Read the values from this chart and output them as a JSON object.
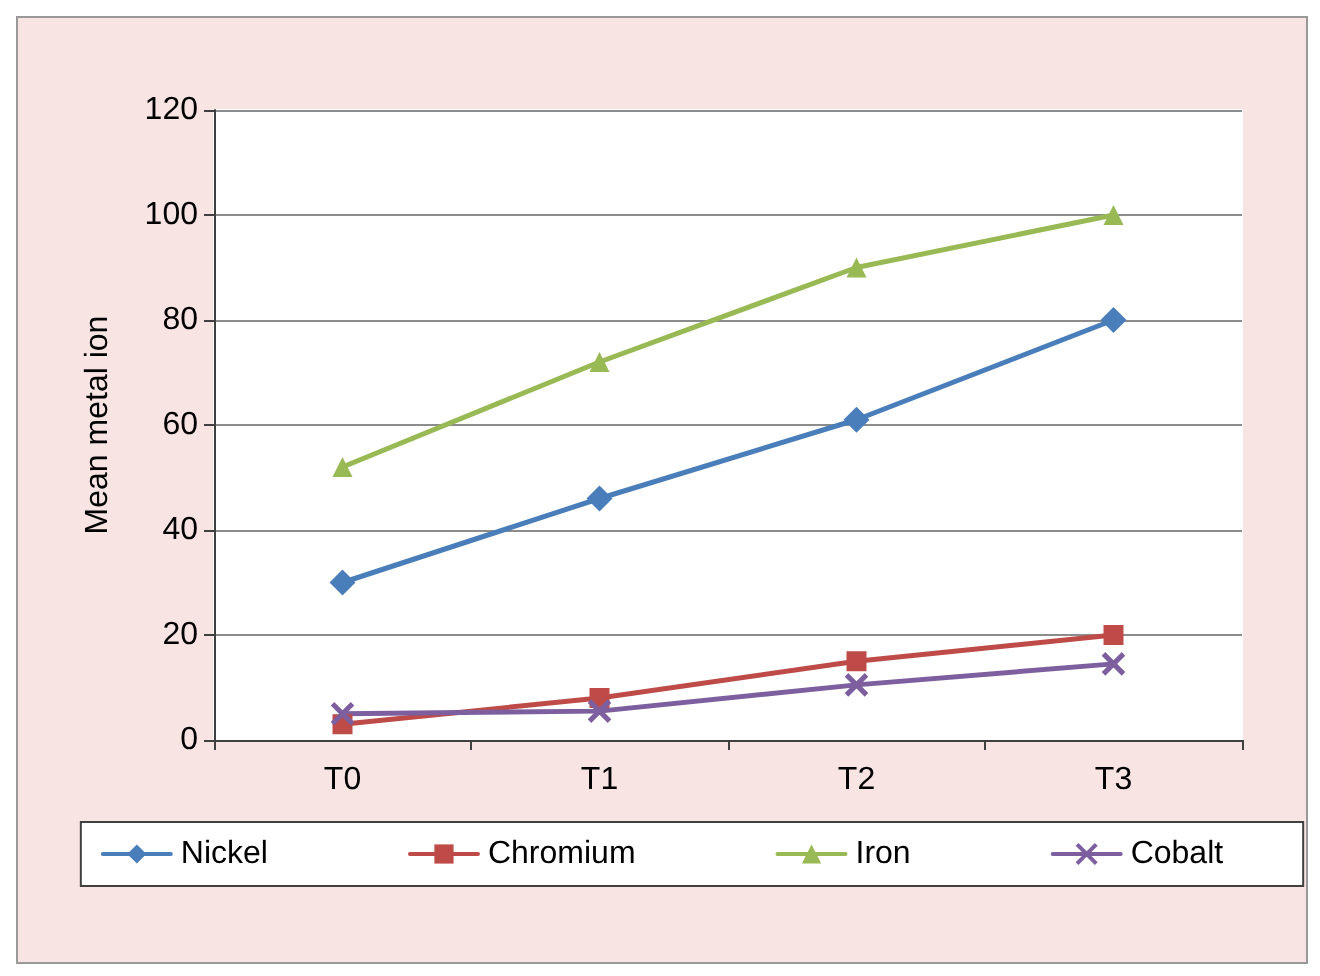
{
  "chart_data": {
    "type": "line",
    "ylabel": "Mean metal ion",
    "categories": [
      "T0",
      "T1",
      "T2",
      "T3"
    ],
    "series": [
      {
        "name": "Nickel",
        "color": "#4a7ebb",
        "marker": "diamond",
        "values": [
          30,
          46,
          61,
          80
        ]
      },
      {
        "name": "Chromium",
        "color": "#be4b48",
        "marker": "square",
        "values": [
          3,
          8,
          15,
          20
        ]
      },
      {
        "name": "Iron",
        "color": "#98b954",
        "marker": "triangle",
        "values": [
          52,
          72,
          90,
          100
        ]
      },
      {
        "name": "Cobalt",
        "color": "#7d5fa0",
        "marker": "cross",
        "values": [
          5,
          5.5,
          10.5,
          14.5
        ]
      }
    ],
    "ylim": [
      0,
      120
    ],
    "yticks": [
      0,
      20,
      40,
      60,
      80,
      100,
      120
    ],
    "grid": "y",
    "legend": "bottom",
    "line_style": "solid"
  }
}
